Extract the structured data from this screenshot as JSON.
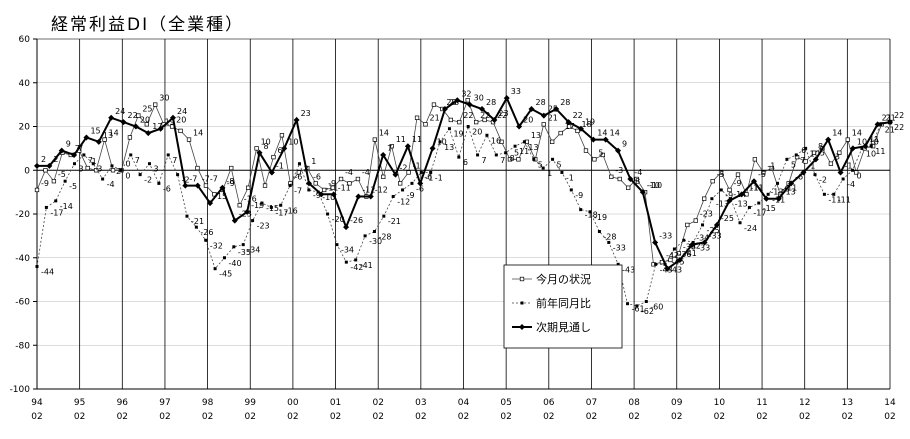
{
  "chart_data": {
    "type": "line",
    "title": "経常利益DI（全業種）",
    "ylim": [
      -100,
      60
    ],
    "yticks": [
      60,
      40,
      20,
      0,
      -20,
      -40,
      -60,
      -80,
      -100
    ],
    "x_tick_years": [
      "94",
      "95",
      "96",
      "97",
      "98",
      "99",
      "00",
      "01",
      "02",
      "03",
      "04",
      "05",
      "06",
      "07",
      "08",
      "09",
      "10",
      "11",
      "12",
      "13",
      "14"
    ],
    "x_tick_months": [
      "02",
      "02",
      "02",
      "02",
      "02",
      "02",
      "02",
      "02",
      "02",
      "02",
      "02",
      "02",
      "02",
      "02",
      "02",
      "02",
      "02",
      "02",
      "02",
      "02",
      "02"
    ],
    "legend": [
      "今月の状況",
      "前年同月比",
      "次期見通し"
    ],
    "series": [
      {
        "name": "今月の状況",
        "values": [
          -9,
          0,
          -5,
          8,
          7,
          9,
          1,
          0,
          14,
          0,
          0,
          15,
          25,
          21,
          30,
          21,
          20,
          18,
          14,
          1,
          -7,
          -11,
          -9,
          1,
          -16,
          -8,
          10,
          -7,
          6,
          16,
          -6,
          -1,
          1,
          -6,
          -9,
          -8,
          -4,
          -6,
          -4,
          -12,
          14,
          -3,
          11,
          -6,
          -1,
          24,
          21,
          30,
          28,
          23,
          22,
          32,
          22,
          23,
          22,
          13,
          5,
          5,
          13,
          5,
          21,
          13,
          17,
          20,
          18,
          9,
          5,
          7,
          -3,
          -4,
          -8,
          -4,
          -10,
          -43,
          -42,
          -41,
          -38,
          -25,
          -23,
          -13,
          -5,
          -1,
          -9,
          -2,
          -11,
          5,
          -1,
          1,
          -11,
          -6,
          6,
          4,
          8,
          10,
          3,
          8,
          14,
          -1,
          10,
          11,
          21,
          22
        ],
        "labeled": [
          0,
          2,
          4,
          6,
          8,
          10,
          12,
          14,
          16,
          18,
          20,
          22,
          24,
          26,
          28,
          30,
          32,
          34,
          36,
          38,
          40,
          42,
          44,
          46,
          48,
          50,
          52,
          54,
          56,
          58,
          60,
          62,
          64,
          66,
          68,
          70,
          72,
          74,
          76,
          78,
          80,
          82,
          84,
          86,
          88,
          90,
          92,
          94,
          96,
          98,
          100
        ]
      },
      {
        "name": "前年同月比",
        "values": [
          -44,
          -17,
          -14,
          -5,
          3,
          7,
          3,
          -4,
          2,
          0,
          7,
          -2,
          3,
          -6,
          7,
          -2,
          -21,
          -26,
          -32,
          -45,
          -40,
          -35,
          -34,
          -23,
          -15,
          -17,
          -16,
          -7,
          3,
          -9,
          -10,
          -20,
          -34,
          -42,
          -41,
          -30,
          -28,
          -21,
          -12,
          -9,
          -6,
          -1,
          -1,
          13,
          19,
          6,
          20,
          7,
          16,
          7,
          8,
          11,
          13,
          5,
          1,
          5,
          -1,
          -9,
          -18,
          -19,
          -28,
          -33,
          -43,
          -61,
          -62,
          -60,
          -43,
          -43,
          -36,
          -32,
          -33,
          -25,
          -13,
          -9,
          -13,
          -24,
          -17,
          -15,
          -11,
          -6,
          5,
          7,
          10,
          -2,
          -11,
          -11,
          -4,
          0,
          10,
          11,
          21,
          22
        ],
        "labeled": "all"
      },
      {
        "name": "次期見通し",
        "values": [
          2,
          2,
          9,
          7,
          15,
          13,
          24,
          22,
          20,
          17,
          19,
          24,
          -7,
          -7,
          -15,
          -8,
          -23,
          -19,
          8,
          -1,
          10,
          23,
          -6,
          -11,
          -11,
          -26,
          -12,
          -12,
          7,
          -2,
          11,
          -6,
          10,
          28,
          32,
          30,
          28,
          23,
          33,
          20,
          28,
          25,
          28,
          22,
          19,
          14,
          14,
          9,
          -4,
          -10,
          -33,
          -45,
          -41,
          -34,
          -33,
          -25,
          -14,
          -11,
          -5,
          -13,
          -13,
          -6,
          -1,
          5,
          14,
          -1,
          10,
          11,
          21,
          22
        ],
        "labeled": "all"
      }
    ]
  }
}
